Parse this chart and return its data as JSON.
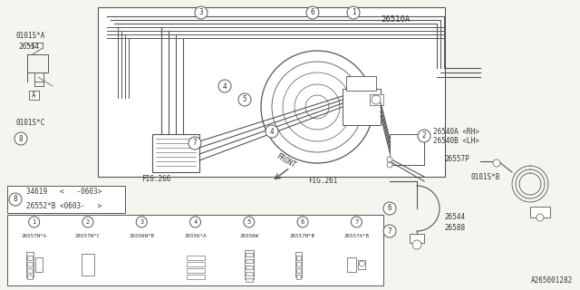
{
  "bg_color": "#f5f5f0",
  "line_color": "#555555",
  "text_color": "#333333",
  "watermark": "A265001282",
  "parts_table": {
    "headers": [
      "1",
      "2",
      "3",
      "4",
      "5",
      "6",
      "7"
    ],
    "part_codes": [
      "26557N*A",
      "26557N*C",
      "26556N*B",
      "26556*A",
      "26556W",
      "26557N*B",
      "26557A*B"
    ]
  },
  "legend": {
    "row1": "34619    <   -0603>",
    "row2": "26552*B <0603-   >"
  },
  "labels": {
    "main_pipe": "26510A",
    "pipe_a": "26540A <RH>",
    "pipe_b": "26540B <LH>",
    "pipe_p": "26557P",
    "clip_b": "0101S*B",
    "hose1": "26544",
    "hose2": "26588",
    "clip_a": "0101S*A",
    "bracket": "26554",
    "clip_c": "0101S*C",
    "fig266": "FIG.266",
    "fig261": "FIG.261",
    "front": "FRONT"
  }
}
